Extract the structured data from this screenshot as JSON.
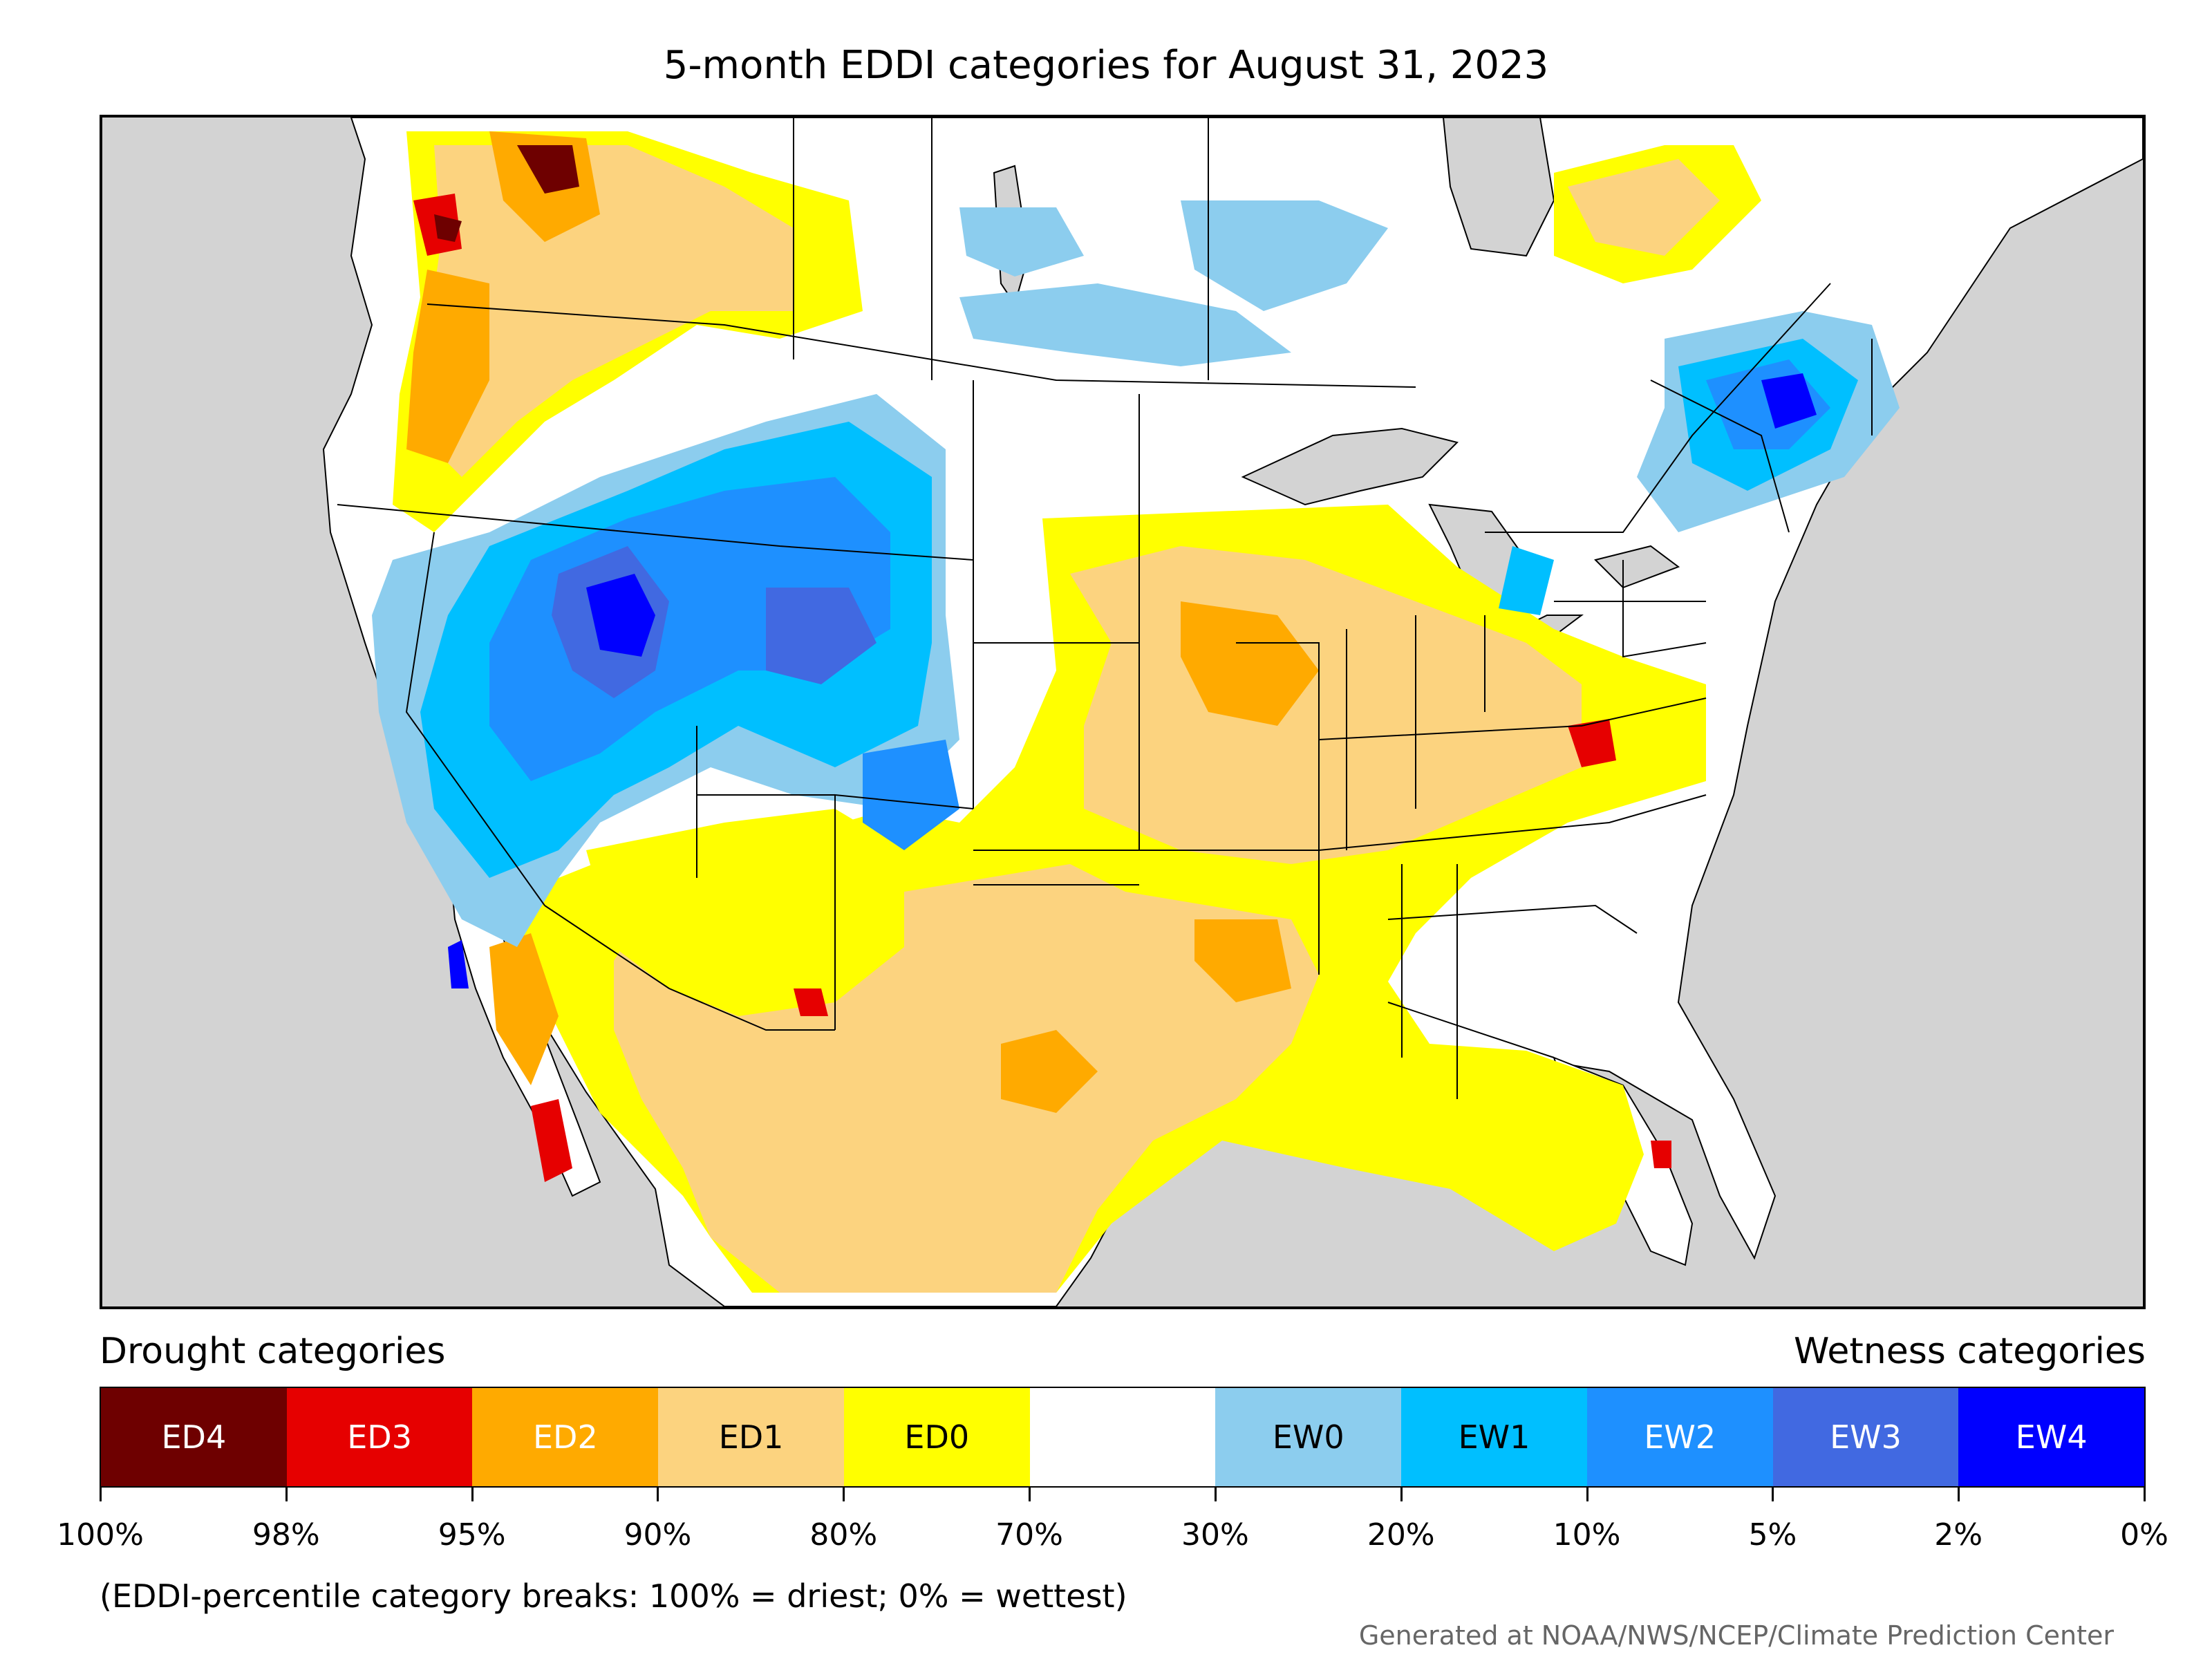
{
  "title": "5-month EDDI categories for August 31, 2023",
  "legend": {
    "drought_heading": "Drought categories",
    "wetness_heading": "Wetness categories",
    "categories": [
      {
        "label": "ED4",
        "color": "#6e0000",
        "text_color": "#ffffff"
      },
      {
        "label": "ED3",
        "color": "#e60000",
        "text_color": "#ffffff"
      },
      {
        "label": "ED2",
        "color": "#ffaa00",
        "text_color": "#ffffff"
      },
      {
        "label": "ED1",
        "color": "#fcd37f",
        "text_color": "#000000"
      },
      {
        "label": "ED0",
        "color": "#ffff00",
        "text_color": "#000000"
      },
      {
        "label": "",
        "color": "#ffffff",
        "text_color": "#000000"
      },
      {
        "label": "EW0",
        "color": "#8ccdee",
        "text_color": "#000000"
      },
      {
        "label": "EW1",
        "color": "#00bfff",
        "text_color": "#000000"
      },
      {
        "label": "EW2",
        "color": "#1e90ff",
        "text_color": "#ffffff"
      },
      {
        "label": "EW3",
        "color": "#4169e1",
        "text_color": "#ffffff"
      },
      {
        "label": "EW4",
        "color": "#0000ff",
        "text_color": "#ffffff"
      }
    ],
    "breaks": [
      "100%",
      "98%",
      "95%",
      "90%",
      "80%",
      "70%",
      "30%",
      "20%",
      "10%",
      "5%",
      "2%",
      "0%"
    ]
  },
  "footnote": "(EDDI-percentile category breaks: 100% = driest; 0% = wettest)",
  "credit": "Generated at NOAA/NWS/NCEP/Climate Prediction Center",
  "colors": {
    "ocean": "#d3d3d3",
    "land": "#ffffff",
    "boundary": "#000000"
  }
}
